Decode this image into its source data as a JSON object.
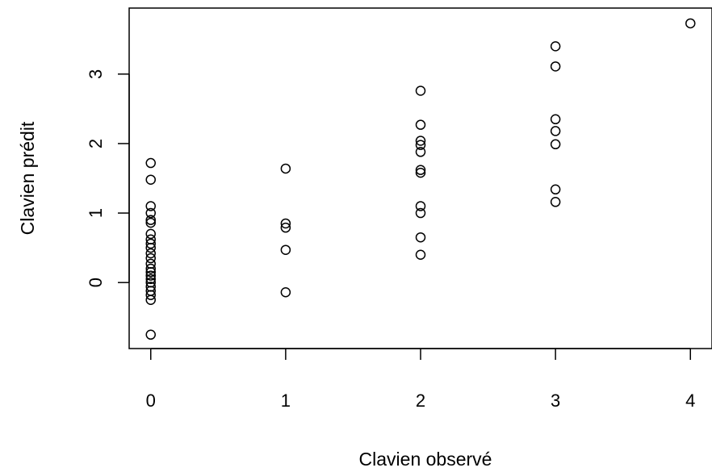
{
  "chart_data": {
    "type": "scatter",
    "title": "",
    "xlabel": "Clavien observé",
    "ylabel": "Clavien prédit",
    "x_ticks": [
      "0",
      "1",
      "2",
      "3",
      "4"
    ],
    "y_ticks": [
      "0",
      "1",
      "2",
      "3"
    ],
    "xlim": [
      -0.16,
      4.16
    ],
    "ylim": [
      -0.95,
      3.95
    ],
    "grid": false,
    "marker": "open-circle",
    "point_color": "#000000",
    "points": [
      {
        "x": 0,
        "y": -0.75
      },
      {
        "x": 0,
        "y": -0.25
      },
      {
        "x": 0,
        "y": -0.18
      },
      {
        "x": 0,
        "y": -0.12
      },
      {
        "x": 0,
        "y": -0.06
      },
      {
        "x": 0,
        "y": 0.0
      },
      {
        "x": 0,
        "y": 0.05
      },
      {
        "x": 0,
        "y": 0.1
      },
      {
        "x": 0,
        "y": 0.15
      },
      {
        "x": 0,
        "y": 0.2
      },
      {
        "x": 0,
        "y": 0.27
      },
      {
        "x": 0,
        "y": 0.35
      },
      {
        "x": 0,
        "y": 0.42
      },
      {
        "x": 0,
        "y": 0.5
      },
      {
        "x": 0,
        "y": 0.56
      },
      {
        "x": 0,
        "y": 0.62
      },
      {
        "x": 0,
        "y": 0.7
      },
      {
        "x": 0,
        "y": 0.86
      },
      {
        "x": 0,
        "y": 0.9
      },
      {
        "x": 0,
        "y": 1.0
      },
      {
        "x": 0,
        "y": 1.1
      },
      {
        "x": 0,
        "y": 1.48
      },
      {
        "x": 0,
        "y": 1.72
      },
      {
        "x": 1,
        "y": -0.14
      },
      {
        "x": 1,
        "y": 0.47
      },
      {
        "x": 1,
        "y": 0.79
      },
      {
        "x": 1,
        "y": 0.85
      },
      {
        "x": 1,
        "y": 1.64
      },
      {
        "x": 2,
        "y": 0.4
      },
      {
        "x": 2,
        "y": 0.65
      },
      {
        "x": 2,
        "y": 1.0
      },
      {
        "x": 2,
        "y": 1.1
      },
      {
        "x": 2,
        "y": 1.58
      },
      {
        "x": 2,
        "y": 1.62
      },
      {
        "x": 2,
        "y": 1.88
      },
      {
        "x": 2,
        "y": 1.98
      },
      {
        "x": 2,
        "y": 2.04
      },
      {
        "x": 2,
        "y": 2.27
      },
      {
        "x": 2,
        "y": 2.76
      },
      {
        "x": 3,
        "y": 1.16
      },
      {
        "x": 3,
        "y": 1.34
      },
      {
        "x": 3,
        "y": 1.99
      },
      {
        "x": 3,
        "y": 2.18
      },
      {
        "x": 3,
        "y": 2.35
      },
      {
        "x": 3,
        "y": 3.11
      },
      {
        "x": 3,
        "y": 3.4
      },
      {
        "x": 4,
        "y": 3.73
      }
    ]
  }
}
